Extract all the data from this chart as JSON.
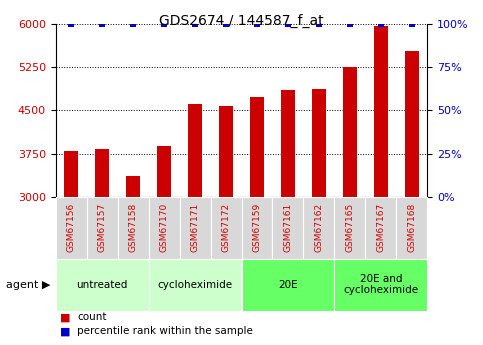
{
  "title": "GDS2674 / 144587_f_at",
  "samples": [
    "GSM67156",
    "GSM67157",
    "GSM67158",
    "GSM67170",
    "GSM67171",
    "GSM67172",
    "GSM67159",
    "GSM67161",
    "GSM67162",
    "GSM67165",
    "GSM67167",
    "GSM67168"
  ],
  "counts": [
    3800,
    3830,
    3360,
    3880,
    4620,
    4580,
    4730,
    4850,
    4870,
    5260,
    5970,
    5530
  ],
  "percentile_ranks": [
    100,
    100,
    100,
    100,
    100,
    100,
    100,
    100,
    100,
    100,
    100,
    100
  ],
  "ylim_left": [
    3000,
    6000
  ],
  "ylim_right": [
    0,
    100
  ],
  "yticks_left": [
    3000,
    3750,
    4500,
    5250,
    6000
  ],
  "yticks_right": [
    0,
    25,
    50,
    75,
    100
  ],
  "bar_color": "#cc0000",
  "dot_color": "#0000cc",
  "label_color": "#cc0000",
  "groups": [
    {
      "label": "untreated",
      "start": 0,
      "end": 3,
      "color": "#ccffcc"
    },
    {
      "label": "cycloheximide",
      "start": 3,
      "end": 6,
      "color": "#ccffcc"
    },
    {
      "label": "20E",
      "start": 6,
      "end": 9,
      "color": "#66ff66"
    },
    {
      "label": "20E and\ncycloheximide",
      "start": 9,
      "end": 12,
      "color": "#66ff66"
    }
  ],
  "legend_count_label": "count",
  "legend_percentile_label": "percentile rank within the sample",
  "agent_label": "agent",
  "background_color": "#ffffff",
  "tick_label_fontsize": 8,
  "sample_label_fontsize": 6.5,
  "group_label_fontsize": 7.5,
  "title_fontsize": 10,
  "bar_width": 0.45
}
